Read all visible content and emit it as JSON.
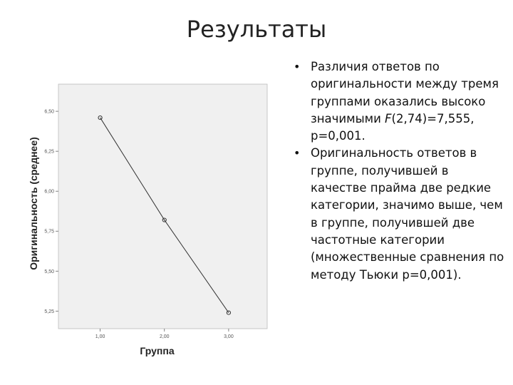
{
  "slide": {
    "title": "Результаты",
    "bullets": [
      {
        "text_before": "Различия ответов по оригинальности между тремя группами оказались высоко значимыми ",
        "stat_symbol": "F",
        "text_after": "(2,74)=7,555, p=0,001."
      },
      {
        "text": "Оригинальность ответов в группе, получившей в качестве прайма две редкие категории, значимо выше, чем в группе, получившей две частотные категории (множественные сравнения по методу Тьюки p=0,001)."
      }
    ]
  },
  "chart_data": {
    "type": "line",
    "title": "",
    "xlabel": "Группа",
    "ylabel": "Оригинальность (среднее)",
    "x": [
      1.0,
      2.0,
      3.0
    ],
    "series": [
      {
        "values": [
          6.46,
          5.82,
          5.24
        ]
      }
    ],
    "x_tick_labels": [
      "1,00",
      "2,00",
      "3,00"
    ],
    "y_ticks": [
      5.25,
      5.5,
      5.75,
      6.0,
      6.25,
      6.5
    ],
    "y_tick_labels": [
      "5,25",
      "5,50",
      "5,75",
      "6,00",
      "6,25",
      "6,50"
    ],
    "xlim": [
      0.35,
      3.6
    ],
    "ylim": [
      5.14,
      6.67
    ],
    "grid": false,
    "legend": "none",
    "colors": {
      "plot_bg": "#f0f0f0",
      "line": "#333333",
      "marker": "#333333"
    }
  }
}
